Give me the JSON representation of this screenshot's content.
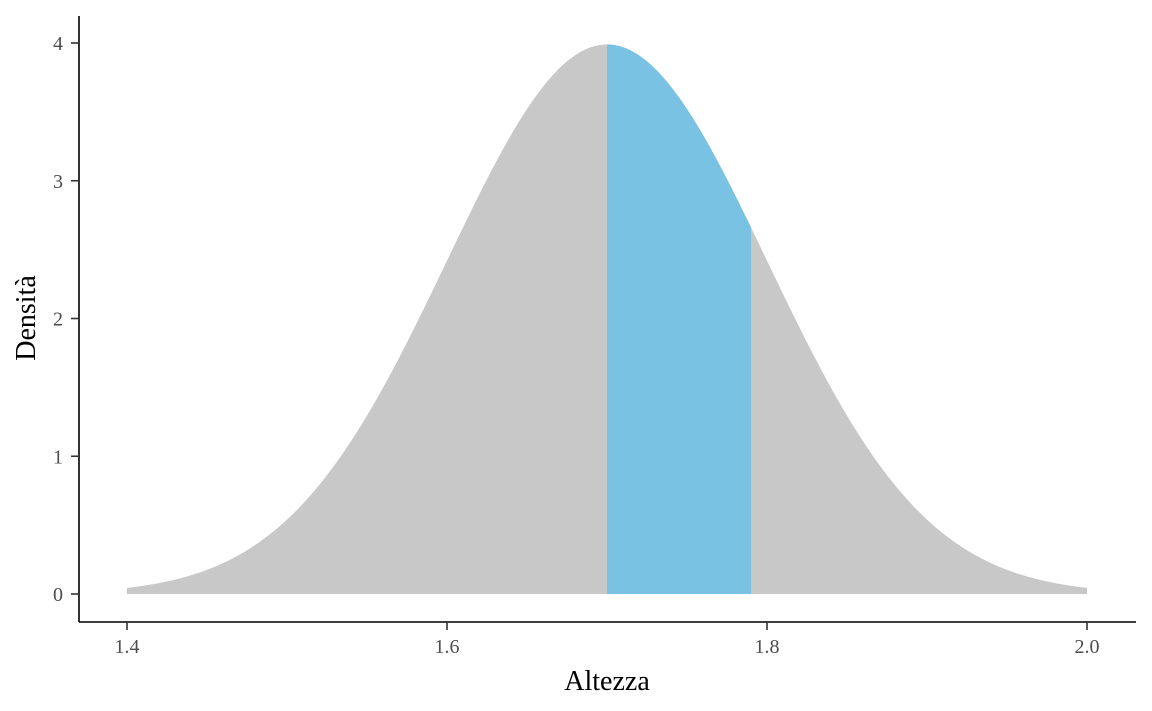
{
  "chart_data": {
    "type": "area",
    "title": "",
    "xlabel": "Altezza",
    "ylabel": "Densità",
    "xlim": [
      1.4,
      2.0
    ],
    "ylim": [
      0,
      4
    ],
    "x_ticks": [
      1.4,
      1.6,
      1.8,
      2.0
    ],
    "x_tick_labels": [
      "1.4",
      "1.6",
      "1.8",
      "2.0"
    ],
    "y_ticks": [
      0,
      1,
      2,
      3,
      4
    ],
    "y_tick_labels": [
      "0",
      "1",
      "2",
      "3",
      "4"
    ],
    "grid": false,
    "legend": "none",
    "distribution": {
      "kind": "normal",
      "mean": 1.7,
      "sd": 0.1
    },
    "shaded_interval": [
      1.7,
      1.79
    ],
    "colors": {
      "curve_fill": "#c8c8c8",
      "interval_fill": "#79c2e4"
    }
  }
}
